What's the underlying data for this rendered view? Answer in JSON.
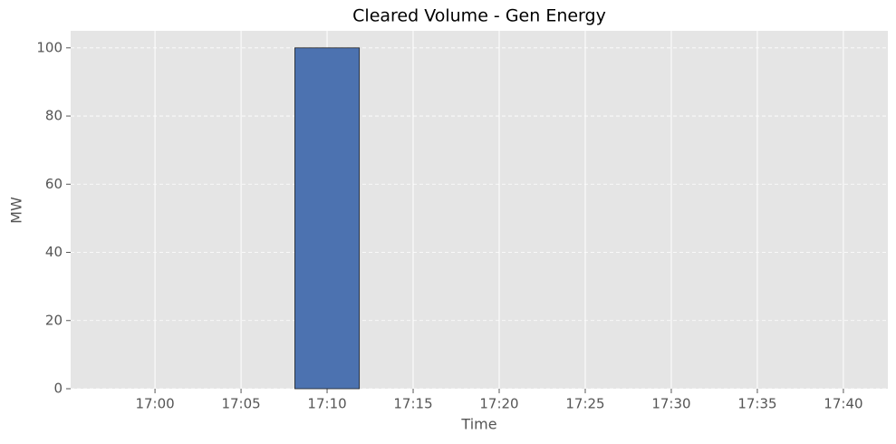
{
  "chart_data": {
    "type": "bar",
    "title": "Cleared Volume - Gen Energy",
    "x_label": "Time",
    "y_label": "MW",
    "x": [
      "17:10"
    ],
    "values": [
      100
    ],
    "color": "#4c72b0",
    "edgecolor": "#222222",
    "xlim": [
      "16:55:06",
      "17:42:35"
    ],
    "xticks": [
      "17:00",
      "17:05",
      "17:10",
      "17:15",
      "17:20",
      "17:25",
      "17:30",
      "17:35",
      "17:40"
    ],
    "ylim": [
      0,
      105
    ],
    "yticks": [
      0,
      20,
      40,
      60,
      80,
      100
    ],
    "grid": true
  }
}
